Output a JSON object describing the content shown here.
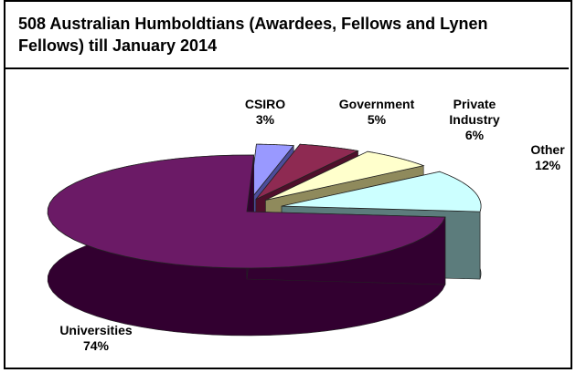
{
  "chart_data": {
    "type": "pie",
    "title": "508 Australian Humboldtians (Awardees, Fellows and Lynen Fellows) till January 2014",
    "slices": [
      {
        "label": "Universities",
        "value": 74,
        "display": "74%",
        "color": "#6b1a66",
        "side": "#320030"
      },
      {
        "label": "CSIRO",
        "value": 3,
        "display": "3%",
        "color": "#9999ff",
        "side": "#4d4d9a"
      },
      {
        "label": "Government",
        "value": 5,
        "display": "5%",
        "color": "#8e2a52",
        "side": "#4f0f2b"
      },
      {
        "label": "Private Industry",
        "value": 6,
        "display": "6%",
        "color": "#ffffcc",
        "side": "#8f8a5c"
      },
      {
        "label": "Other",
        "value": 12,
        "display": "12%",
        "color": "#ccffff",
        "side": "#5c7c7c"
      }
    ],
    "legend": "none"
  }
}
